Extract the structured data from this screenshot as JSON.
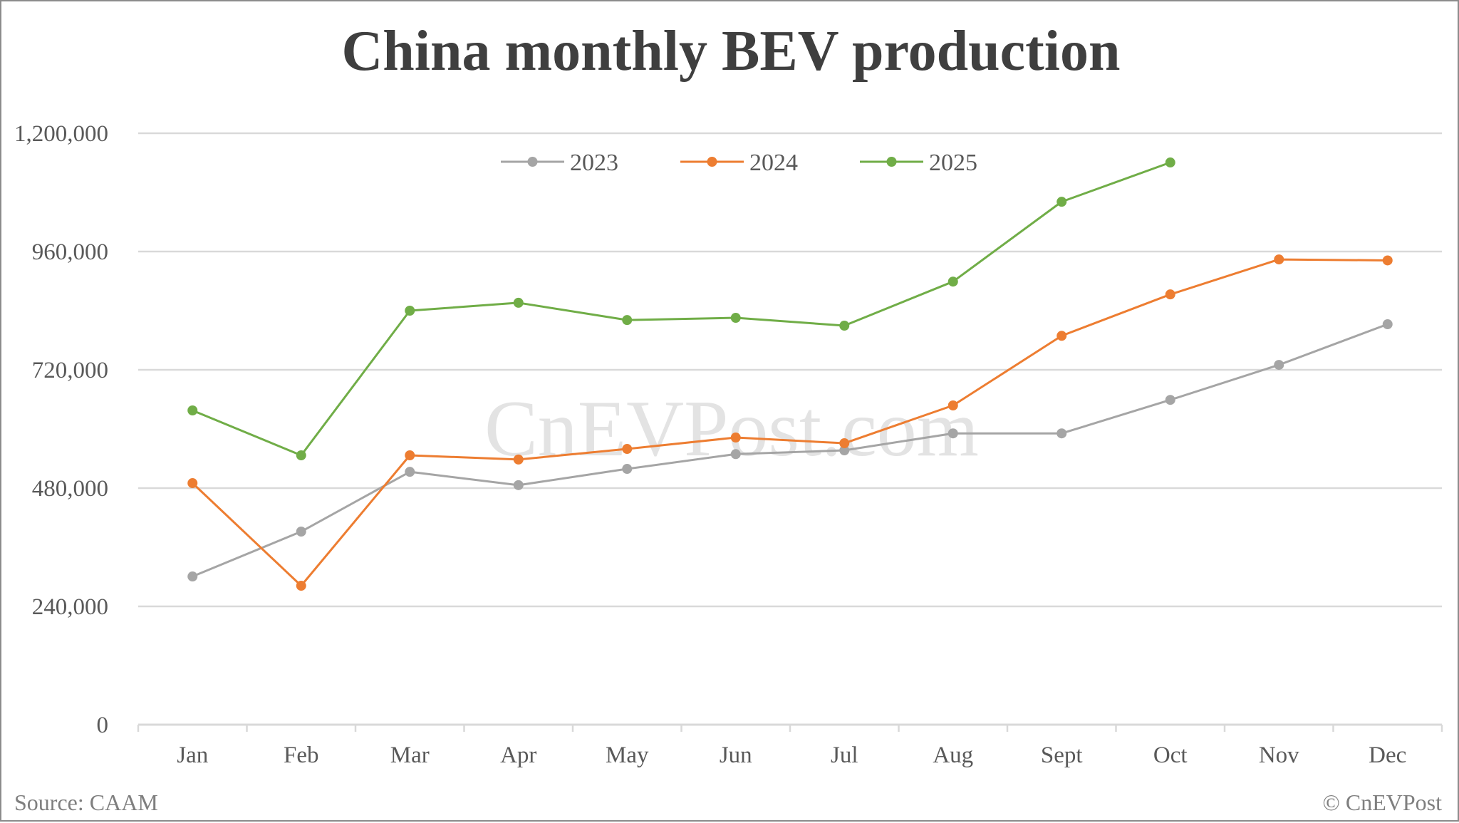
{
  "chart_data": {
    "type": "line",
    "title": "China monthly BEV production",
    "xlabel": "",
    "ylabel": "",
    "categories": [
      "Jan",
      "Feb",
      "Mar",
      "Apr",
      "May",
      "Jun",
      "Jul",
      "Aug",
      "Sept",
      "Oct",
      "Nov",
      "Dec"
    ],
    "ylim": [
      0,
      1200000
    ],
    "yticks": [
      0,
      240000,
      480000,
      720000,
      960000,
      1200000
    ],
    "ytick_labels": [
      "0",
      "240,000",
      "480,000",
      "720,000",
      "960,000",
      "1,200,000"
    ],
    "grid": true,
    "legend_position": "top",
    "series": [
      {
        "name": "2023",
        "color": "#A5A5A5",
        "values": [
          300700,
          391800,
          513000,
          486000,
          519000,
          549000,
          556600,
          591000,
          591000,
          659000,
          730000,
          812500
        ]
      },
      {
        "name": "2024",
        "color": "#ED7D31",
        "values": [
          490100,
          281900,
          546500,
          538000,
          559500,
          582600,
          571000,
          647700,
          789000,
          873000,
          944000,
          942000
        ]
      },
      {
        "name": "2025",
        "color": "#70AD47",
        "values": [
          637600,
          546500,
          840000,
          856000,
          821000,
          825500,
          809600,
          899000,
          1061000,
          1140700,
          null,
          null
        ]
      }
    ],
    "watermark": "CnEVPost.com",
    "source": "Source: CAAM",
    "copyright": "© CnEVPost"
  }
}
